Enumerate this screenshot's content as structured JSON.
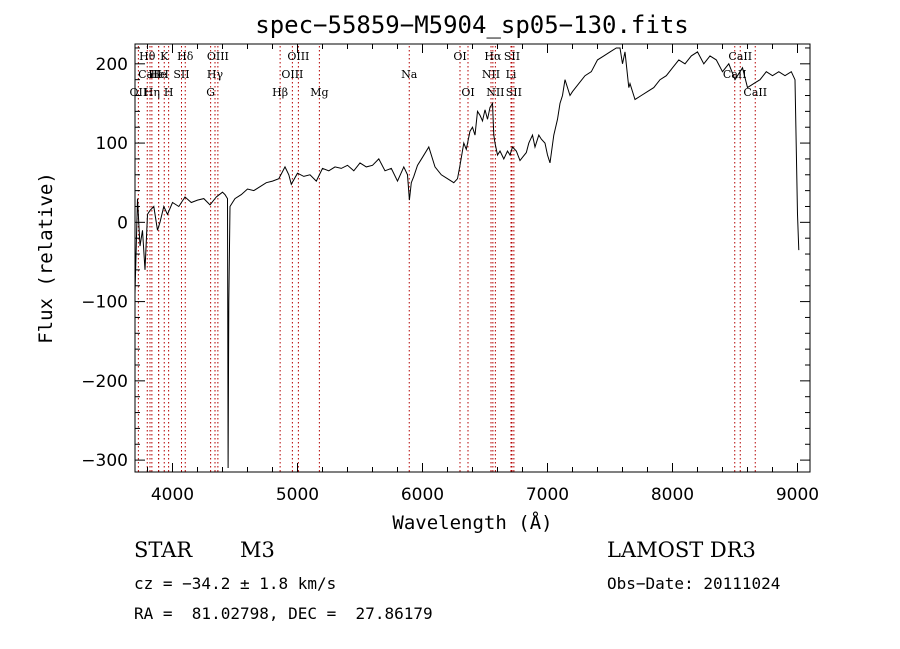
{
  "chart_data": {
    "type": "line",
    "title": "spec−55859−M5904_sp05−130.fits",
    "xlabel": "Wavelength (Å)",
    "ylabel": "Flux (relative)",
    "xlim": [
      3700,
      9100
    ],
    "ylim": [
      -315,
      225
    ],
    "xticks": [
      4000,
      5000,
      6000,
      7000,
      8000,
      9000
    ],
    "yticks": [
      -300,
      -200,
      -100,
      0,
      100,
      200
    ],
    "ytick_labels": [
      "−300",
      "−200",
      "−100",
      "0",
      "100",
      "200"
    ],
    "grid": false,
    "series": [
      {
        "name": "spectrum",
        "color": "#000000",
        "x": [
          3700,
          3720,
          3740,
          3760,
          3780,
          3800,
          3820,
          3850,
          3880,
          3900,
          3930,
          3960,
          4000,
          4050,
          4100,
          4150,
          4200,
          4250,
          4300,
          4350,
          4400,
          4420,
          4440,
          4445,
          4450,
          4460,
          4480,
          4500,
          4550,
          4600,
          4650,
          4700,
          4750,
          4800,
          4850,
          4900,
          4930,
          4950,
          5000,
          5050,
          5100,
          5150,
          5200,
          5250,
          5300,
          5350,
          5400,
          5450,
          5500,
          5550,
          5600,
          5650,
          5700,
          5750,
          5800,
          5850,
          5880,
          5895,
          5910,
          5930,
          5960,
          6000,
          6050,
          6100,
          6150,
          6200,
          6250,
          6280,
          6300,
          6330,
          6350,
          6380,
          6400,
          6420,
          6440,
          6460,
          6480,
          6500,
          6520,
          6540,
          6560,
          6570,
          6580,
          6600,
          6620,
          6650,
          6680,
          6700,
          6720,
          6750,
          6780,
          6800,
          6830,
          6850,
          6880,
          6900,
          6930,
          6950,
          6980,
          7000,
          7020,
          7050,
          7080,
          7100,
          7120,
          7140,
          7160,
          7180,
          7200,
          7250,
          7300,
          7350,
          7400,
          7450,
          7500,
          7550,
          7580,
          7600,
          7620,
          7650,
          7660,
          7700,
          7750,
          7800,
          7850,
          7900,
          7950,
          8000,
          8050,
          8100,
          8150,
          8200,
          8250,
          8300,
          8350,
          8400,
          8450,
          8500,
          8520,
          8540,
          8560,
          8600,
          8650,
          8700,
          8750,
          8800,
          8850,
          8900,
          8950,
          8980,
          9000,
          9010
        ],
        "y": [
          -90,
          30,
          -30,
          -10,
          -60,
          10,
          15,
          20,
          -10,
          0,
          20,
          10,
          25,
          20,
          32,
          25,
          28,
          30,
          22,
          32,
          38,
          35,
          30,
          -310,
          -100,
          20,
          25,
          30,
          35,
          42,
          40,
          45,
          50,
          52,
          55,
          70,
          60,
          48,
          62,
          58,
          60,
          52,
          68,
          65,
          70,
          68,
          72,
          65,
          75,
          70,
          72,
          80,
          65,
          68,
          52,
          70,
          60,
          28,
          50,
          58,
          72,
          82,
          95,
          70,
          60,
          55,
          50,
          55,
          72,
          100,
          92,
          115,
          120,
          110,
          140,
          135,
          128,
          142,
          130,
          145,
          150,
          110,
          100,
          85,
          90,
          80,
          90,
          85,
          95,
          90,
          78,
          82,
          88,
          100,
          110,
          95,
          110,
          105,
          100,
          85,
          75,
          110,
          130,
          150,
          160,
          180,
          170,
          160,
          165,
          175,
          185,
          190,
          205,
          210,
          215,
          220,
          220,
          200,
          215,
          170,
          175,
          155,
          160,
          165,
          170,
          180,
          185,
          195,
          205,
          200,
          210,
          215,
          200,
          210,
          205,
          190,
          200,
          180,
          185,
          190,
          195,
          170,
          175,
          180,
          190,
          185,
          190,
          185,
          190,
          180,
          10,
          -35
        ]
      }
    ],
    "line_markers": [
      {
        "label": "Hθ",
        "x": 3798,
        "row": 1
      },
      {
        "label": "CaII",
        "x": 3820,
        "row": 2
      },
      {
        "label": "OII",
        "x": 3727,
        "row": 3
      },
      {
        "label": "He",
        "x": 3889,
        "row": 2
      },
      {
        "label": "K",
        "x": 3934,
        "row": 1
      },
      {
        "label": "Hη",
        "x": 3835,
        "row": 3
      },
      {
        "label": "HeI",
        "x": 3889,
        "row": 2
      },
      {
        "label": "H",
        "x": 3969,
        "row": 3
      },
      {
        "label": "SII",
        "x": 4072,
        "row": 2
      },
      {
        "label": "Hδ",
        "x": 4102,
        "row": 1
      },
      {
        "label": "OIII",
        "x": 4363,
        "row": 1
      },
      {
        "label": "Hγ",
        "x": 4340,
        "row": 2
      },
      {
        "label": "G",
        "x": 4305,
        "row": 3
      },
      {
        "label": "OIII",
        "x": 5007,
        "row": 1
      },
      {
        "label": "OIII",
        "x": 4959,
        "row": 2
      },
      {
        "label": "Hβ",
        "x": 4861,
        "row": 3
      },
      {
        "label": "Mg",
        "x": 5175,
        "row": 3
      },
      {
        "label": "Na",
        "x": 5894,
        "row": 2
      },
      {
        "label": "OI",
        "x": 6300,
        "row": 1
      },
      {
        "label": "OI",
        "x": 6364,
        "row": 3
      },
      {
        "label": "Hα",
        "x": 6563,
        "row": 1
      },
      {
        "label": "SII",
        "x": 6716,
        "row": 1
      },
      {
        "label": "NII",
        "x": 6548,
        "row": 2
      },
      {
        "label": "Li",
        "x": 6708,
        "row": 2
      },
      {
        "label": "NII",
        "x": 6583,
        "row": 3
      },
      {
        "label": "SII",
        "x": 6731,
        "row": 3
      },
      {
        "label": "CaII",
        "x": 8542,
        "row": 1
      },
      {
        "label": "CaII",
        "x": 8498,
        "row": 2
      },
      {
        "label": "CaII",
        "x": 8662,
        "row": 3
      }
    ]
  },
  "info": {
    "class": "STAR",
    "subclass": "M3",
    "survey": "LAMOST DR3",
    "cz": "cz = −34.2 ± 1.8 km/s",
    "obs_date": "Obs−Date: 20111024",
    "radec": "RA =  81.02798, DEC =  27.86179"
  }
}
